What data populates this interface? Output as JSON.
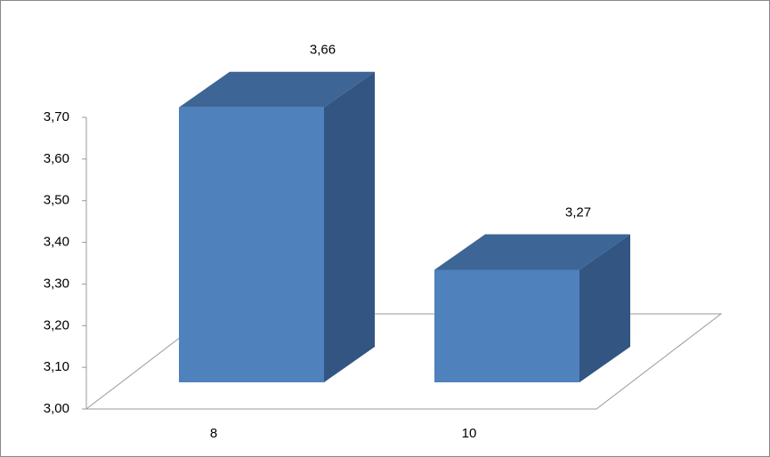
{
  "chart_data": {
    "type": "bar3d",
    "categories": [
      "8",
      "10"
    ],
    "values": [
      3.66,
      3.27
    ],
    "value_labels": [
      "3,66",
      "3,27"
    ],
    "color": "#4f81bd",
    "ylim": [
      3.0,
      3.7
    ],
    "yticks": [
      {
        "value": 3.0,
        "label": "3,00"
      },
      {
        "value": 3.1,
        "label": "3,10"
      },
      {
        "value": 3.2,
        "label": "3,20"
      },
      {
        "value": 3.3,
        "label": "3,30"
      },
      {
        "value": 3.4,
        "label": "3,40"
      },
      {
        "value": 3.5,
        "label": "3,50"
      },
      {
        "value": 3.6,
        "label": "3,60"
      },
      {
        "value": 3.7,
        "label": "3,70"
      }
    ]
  }
}
